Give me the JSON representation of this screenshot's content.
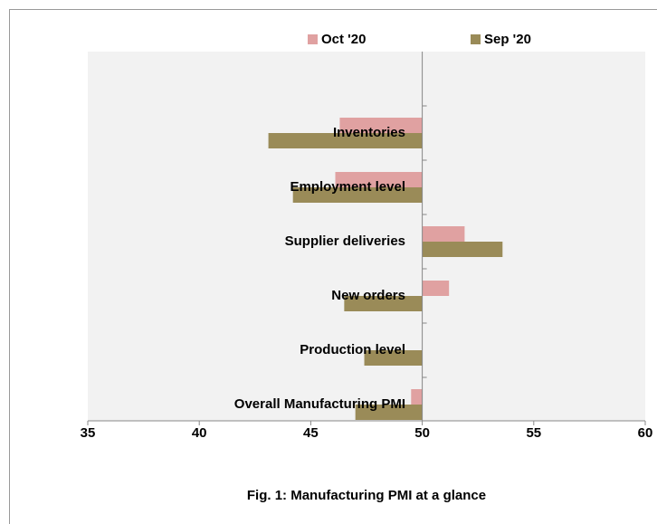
{
  "chart_data": {
    "type": "hbar",
    "title": "Fig. 1: Manufacturing PMI at a glance",
    "categories": [
      "Inventories",
      "Employment level",
      "Supplier deliveries",
      "New orders",
      "Production level",
      "Overall Manufacturing PMI"
    ],
    "series": [
      {
        "name": "Oct '20",
        "color": "#e0a1a1",
        "values": [
          46.3,
          46.1,
          51.9,
          51.2,
          50,
          49.5
        ]
      },
      {
        "name": "Sep '20",
        "color": "#9a8b58",
        "values": [
          43.1,
          44.2,
          53.6,
          46.5,
          47.4,
          47.0
        ]
      }
    ],
    "xlim": [
      35,
      60
    ],
    "xticks": [
      35,
      40,
      45,
      50,
      55,
      60
    ],
    "axis_crossing": 50,
    "legend": "top",
    "grid": false
  }
}
